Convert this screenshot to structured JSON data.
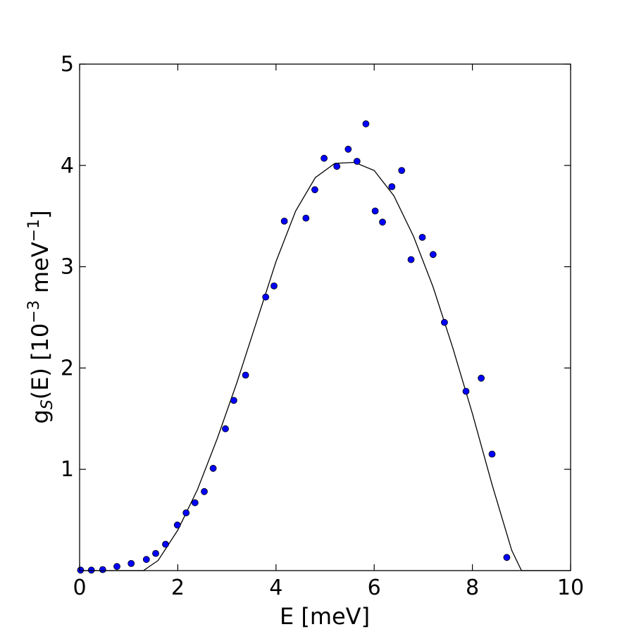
{
  "chart_data": {
    "type": "scatter",
    "xlabel": "E [meV]",
    "ylabel": {
      "main": "g",
      "subscript": "S",
      "paren": "(E) [10",
      "exp": "−3",
      "unit": " meV",
      "unit_exp": "−1",
      "close": "]"
    },
    "xlim": [
      0,
      10
    ],
    "ylim": [
      0,
      5
    ],
    "x_ticks": [
      0,
      2,
      4,
      6,
      8,
      10
    ],
    "y_ticks": [
      1,
      2,
      3,
      4,
      5
    ],
    "grid": false,
    "colors": {
      "points": "#0000ff",
      "fit": "#000000",
      "axes": "#000000"
    },
    "series": [
      {
        "kind": "points",
        "x": [
          0.02,
          0.24,
          0.47,
          0.76,
          1.05,
          1.36,
          1.55,
          1.75,
          1.99,
          2.17,
          2.35,
          2.54,
          2.72,
          2.97,
          3.14,
          3.38,
          3.79,
          3.96,
          4.17,
          4.61,
          4.79,
          4.98,
          5.24,
          5.47,
          5.65,
          5.83,
          6.02,
          6.17,
          6.36,
          6.56,
          6.75,
          6.98,
          7.2,
          7.43,
          7.87,
          8.18,
          8.4,
          8.7
        ],
        "y": [
          0.005,
          0.005,
          0.01,
          0.04,
          0.07,
          0.11,
          0.17,
          0.26,
          0.45,
          0.57,
          0.67,
          0.78,
          1.01,
          1.4,
          1.68,
          1.93,
          2.7,
          2.81,
          3.45,
          3.48,
          3.76,
          4.07,
          3.99,
          4.16,
          4.04,
          4.41,
          3.55,
          3.44,
          3.79,
          3.95,
          3.07,
          3.29,
          3.12,
          2.45,
          1.77,
          1.9,
          1.15,
          0.13
        ]
      },
      {
        "kind": "line",
        "x": [
          0,
          1.3,
          1.6,
          2.0,
          2.4,
          2.8,
          3.2,
          3.6,
          4.0,
          4.4,
          4.8,
          5.2,
          5.6,
          6.0,
          6.4,
          6.8,
          7.2,
          7.6,
          8.0,
          8.4,
          8.8,
          9.0,
          10
        ],
        "y": [
          0,
          0,
          0.1,
          0.4,
          0.8,
          1.3,
          1.85,
          2.45,
          3.05,
          3.55,
          3.88,
          4.02,
          4.03,
          3.95,
          3.7,
          3.3,
          2.8,
          2.2,
          1.55,
          0.85,
          0.2,
          0,
          0
        ]
      }
    ]
  }
}
